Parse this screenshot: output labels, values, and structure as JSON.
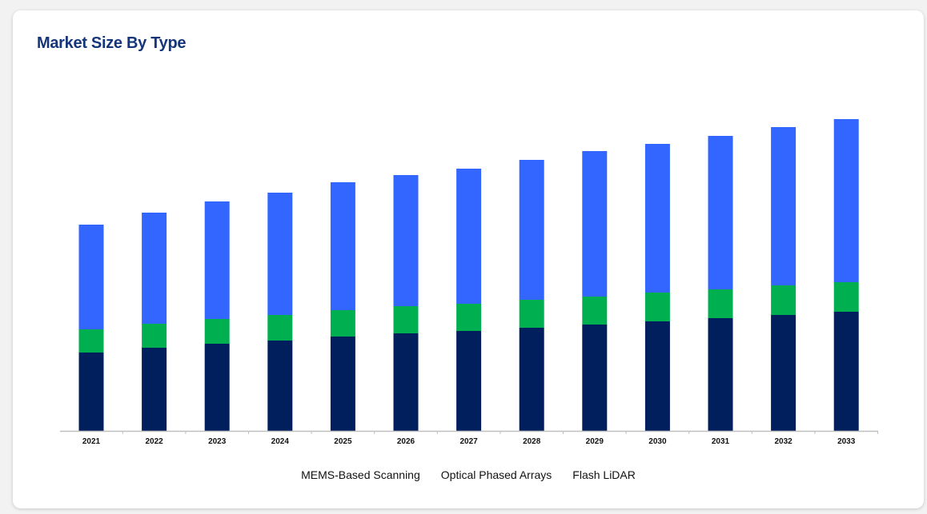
{
  "card": {
    "title": "Market Size By Type"
  },
  "chart_data": {
    "type": "bar",
    "stacked": true,
    "title": "Market Size By Type",
    "categories": [
      "2021",
      "2022",
      "2023",
      "2024",
      "2025",
      "2026",
      "2027",
      "2028",
      "2029",
      "2030",
      "2031",
      "2032",
      "2033"
    ],
    "series": [
      {
        "name": "MEMS-Based Scanning",
        "color": "#001f5c",
        "values": [
          98,
          104,
          109,
          113,
          118,
          122,
          125,
          129,
          133,
          137,
          141,
          145,
          149
        ]
      },
      {
        "name": "Optical Phased Arrays",
        "color": "#00b050",
        "values": [
          29,
          30,
          31,
          32,
          33,
          34,
          34,
          35,
          35,
          36,
          36,
          37,
          37
        ]
      },
      {
        "name": "Flash LiDAR",
        "color": "#3366ff",
        "values": [
          131,
          139,
          147,
          153,
          160,
          164,
          169,
          175,
          182,
          186,
          192,
          198,
          204
        ]
      }
    ],
    "ylim": [
      0,
      400
    ],
    "grid": false,
    "y_axis_visible": false,
    "legend_position": "bottom"
  }
}
